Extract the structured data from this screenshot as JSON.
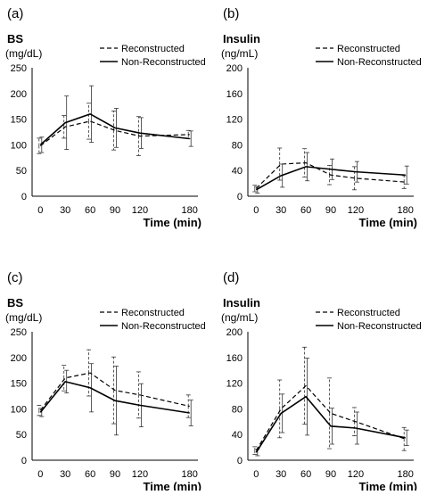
{
  "chart_data": [
    {
      "panel_label": "(a)",
      "type": "line",
      "ylabel": [
        "BS",
        "(mg/dL)"
      ],
      "xlabel": "Time (min)",
      "x": [
        0,
        30,
        60,
        90,
        120,
        180
      ],
      "xticks": [
        "0",
        "30",
        "60",
        "90",
        "120",
        "180"
      ],
      "ylim": [
        0,
        250
      ],
      "yticks": [
        "0",
        "50",
        "100",
        "150",
        "200",
        "250"
      ],
      "series": [
        {
          "name": "Reconstructed",
          "style": "dashed",
          "values": [
            98,
            135,
            146,
            128,
            117,
            120
          ],
          "err": [
            15,
            22,
            35,
            38,
            38,
            8
          ]
        },
        {
          "name": "Non-Reconstructed",
          "style": "solid",
          "values": [
            100,
            143,
            160,
            133,
            123,
            112
          ],
          "err": [
            15,
            52,
            55,
            38,
            30,
            15
          ]
        }
      ],
      "legend_position": "top-right",
      "grid": false
    },
    {
      "panel_label": "(b)",
      "type": "line",
      "ylabel": [
        "Insulin",
        "(ng/mL)"
      ],
      "xlabel": "Time (min)",
      "x": [
        0,
        30,
        60,
        90,
        120,
        180
      ],
      "xticks": [
        "0",
        "30",
        "60",
        "90",
        "120",
        "180"
      ],
      "ylim": [
        0,
        200
      ],
      "yticks": [
        "0",
        "40",
        "80",
        "120",
        "160",
        "200"
      ],
      "series": [
        {
          "name": "Reconstructed",
          "style": "dashed",
          "values": [
            12,
            50,
            52,
            33,
            28,
            22
          ],
          "err": [
            5,
            25,
            22,
            15,
            18,
            10
          ]
        },
        {
          "name": "Non-Reconstructed",
          "style": "solid",
          "values": [
            10,
            32,
            46,
            42,
            38,
            33
          ],
          "err": [
            5,
            18,
            22,
            16,
            16,
            14
          ]
        }
      ],
      "legend_position": "top-right",
      "grid": false
    },
    {
      "panel_label": "(c)",
      "type": "line",
      "ylabel": [
        "BS",
        "(mg/dL)"
      ],
      "xlabel": "Time (min)",
      "x": [
        0,
        30,
        60,
        90,
        120,
        180
      ],
      "xticks": [
        "0",
        "30",
        "60",
        "90",
        "120",
        "180"
      ],
      "ylim": [
        0,
        250
      ],
      "yticks": [
        "0",
        "50",
        "100",
        "150",
        "200",
        "250"
      ],
      "series": [
        {
          "name": "Reconstructed",
          "style": "dashed",
          "values": [
            97,
            160,
            170,
            136,
            127,
            105
          ],
          "err": [
            10,
            25,
            45,
            65,
            45,
            22
          ]
        },
        {
          "name": "Non-Reconstructed",
          "style": "solid",
          "values": [
            93,
            153,
            141,
            116,
            107,
            92
          ],
          "err": [
            8,
            22,
            47,
            67,
            42,
            25
          ]
        }
      ],
      "legend_position": "top-right",
      "grid": false
    },
    {
      "panel_label": "(d)",
      "type": "line",
      "ylabel": [
        "Insulin",
        "(ng/mL)"
      ],
      "xlabel": "Time (min)",
      "x": [
        0,
        30,
        60,
        90,
        120,
        180
      ],
      "xticks": [
        "0",
        "30",
        "60",
        "90",
        "120",
        "180"
      ],
      "ylim": [
        0,
        200
      ],
      "yticks": [
        "0",
        "40",
        "80",
        "120",
        "160",
        "200"
      ],
      "series": [
        {
          "name": "Reconstructed",
          "style": "dashed",
          "values": [
            15,
            80,
            116,
            73,
            60,
            33
          ],
          "err": [
            6,
            45,
            60,
            55,
            22,
            18
          ]
        },
        {
          "name": "Non-Reconstructed",
          "style": "solid",
          "values": [
            12,
            73,
            99,
            53,
            50,
            35
          ],
          "err": [
            5,
            30,
            60,
            28,
            25,
            12
          ]
        }
      ],
      "legend_position": "top-right",
      "grid": false
    }
  ]
}
